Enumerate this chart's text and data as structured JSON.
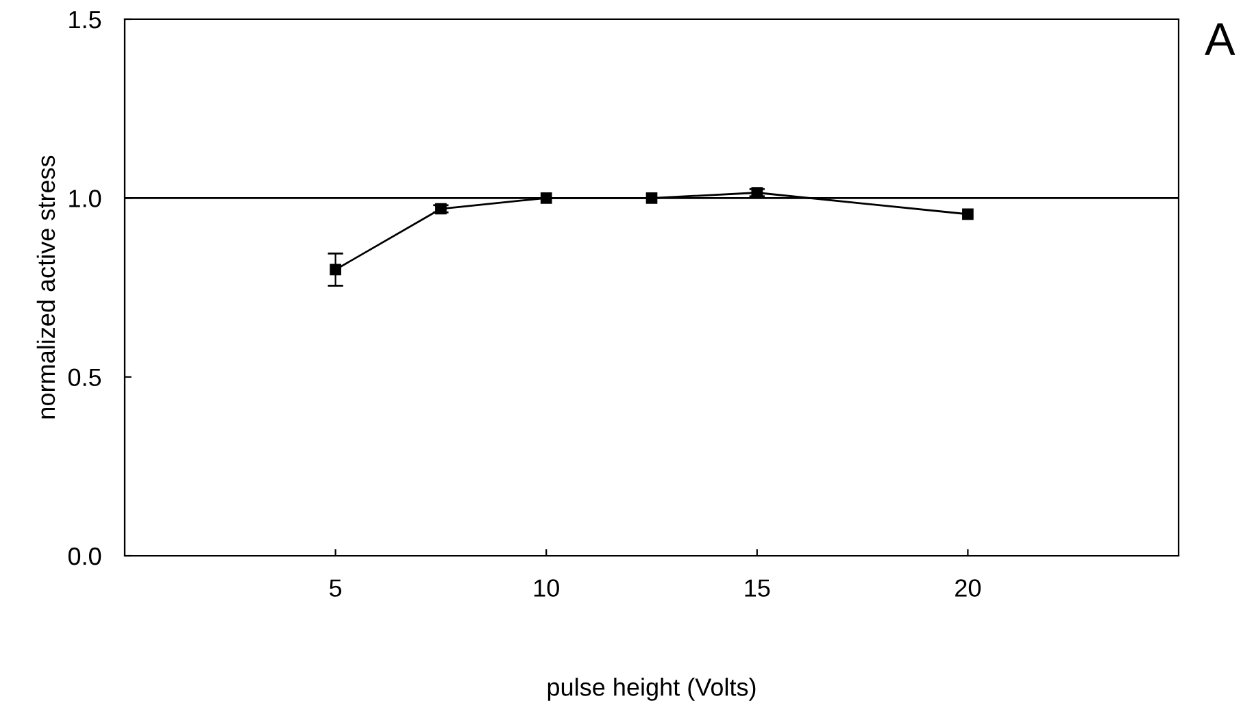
{
  "chart_data": {
    "type": "line",
    "xlabel": "pulse height (Volts)",
    "ylabel": "normalized active stress",
    "annotations": [
      "A"
    ],
    "x": [
      5,
      7.5,
      10,
      12.5,
      15,
      20
    ],
    "series": [
      {
        "color": "#000000",
        "values": [
          0.8,
          0.97,
          1.0,
          1.0,
          1.015,
          0.955
        ],
        "errors": [
          0.045,
          0.01,
          null,
          null,
          0.01,
          null
        ]
      }
    ],
    "xlim": [
      0,
      25
    ],
    "ylim": [
      0,
      1.5
    ],
    "xticks": [
      5,
      10,
      15,
      20
    ],
    "yticks": [
      {
        "value": 0,
        "label": "0.0"
      },
      {
        "value": 0.5,
        "label": "0.5"
      },
      {
        "value": 1.0,
        "label": "1.0"
      },
      {
        "value": 1.5,
        "label": "1.5"
      }
    ],
    "ref_lines": [
      {
        "axis": "y",
        "value": 1.0,
        "color": "#000000"
      }
    ],
    "marker": "square",
    "grid": false,
    "legend": false
  }
}
